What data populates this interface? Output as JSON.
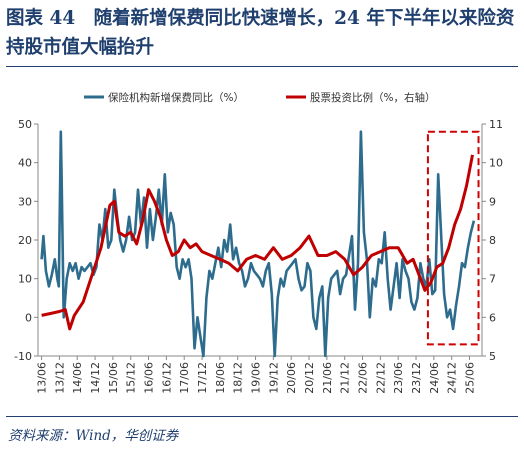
{
  "title": "图表 44　随着新增保费同比快速增长，24 年下半年以来险资持股市值大幅抬升",
  "source": "资料来源：Wind，华创证券",
  "colors": {
    "insurance_premium": "#2e6c8e",
    "equity_ratio": "#c00000",
    "highlight": "#d00000",
    "title": "#1f3f6e"
  },
  "chart_data": {
    "type": "line",
    "title": "",
    "xlabel": "",
    "ylabel": "",
    "grid": false,
    "legend": "top",
    "x_tick_labels": [
      "13/06",
      "13/12",
      "14/06",
      "14/12",
      "15/06",
      "15/12",
      "16/06",
      "16/12",
      "17/06",
      "17/12",
      "18/06",
      "18/12",
      "19/06",
      "19/12",
      "20/06",
      "20/12",
      "21/06",
      "21/12",
      "22/06",
      "22/12",
      "23/06",
      "23/12",
      "24/06",
      "24/12",
      "25/06"
    ],
    "y_left": {
      "min": -10,
      "max": 50,
      "ticks": [
        -10,
        0,
        10,
        20,
        30,
        40,
        50
      ]
    },
    "y_right": {
      "min": 5,
      "max": 11,
      "ticks": [
        5,
        6,
        7,
        8,
        9,
        10,
        11
      ]
    },
    "highlight_box": {
      "x_from": "24/04",
      "x_to": "25/06",
      "y_right_from": 5.3,
      "y_right_to": 10.8
    },
    "series": [
      {
        "name": "保险机构新增保费同比（%）",
        "axis": "left",
        "color": "#2e6c8e",
        "values": [
          [
            "2013-06-01",
            15
          ],
          [
            "2013-06-20",
            21
          ],
          [
            "2013-07-15",
            12
          ],
          [
            "2013-08-15",
            8
          ],
          [
            "2013-09-15",
            11
          ],
          [
            "2013-10-15",
            15
          ],
          [
            "2013-11-10",
            10
          ],
          [
            "2013-11-25",
            8
          ],
          [
            "2013-12-15",
            48
          ],
          [
            "2013-12-25",
            35
          ],
          [
            "2014-01-15",
            0
          ],
          [
            "2014-01-25",
            3
          ],
          [
            "2014-02-15",
            10
          ],
          [
            "2014-03-15",
            14
          ],
          [
            "2014-04-15",
            12
          ],
          [
            "2014-05-15",
            14
          ],
          [
            "2014-06-15",
            10
          ],
          [
            "2014-07-15",
            13
          ],
          [
            "2014-08-15",
            12
          ],
          [
            "2014-09-15",
            13
          ],
          [
            "2014-10-15",
            14
          ],
          [
            "2014-11-15",
            11
          ],
          [
            "2014-12-15",
            13
          ],
          [
            "2015-01-15",
            24
          ],
          [
            "2015-02-15",
            20
          ],
          [
            "2015-03-15",
            28
          ],
          [
            "2015-04-15",
            18
          ],
          [
            "2015-05-15",
            20
          ],
          [
            "2015-06-15",
            33
          ],
          [
            "2015-07-15",
            26
          ],
          [
            "2015-08-15",
            20
          ],
          [
            "2015-09-15",
            17
          ],
          [
            "2015-10-15",
            20
          ],
          [
            "2015-11-15",
            26
          ],
          [
            "2015-12-15",
            20
          ],
          [
            "2016-01-15",
            22
          ],
          [
            "2016-02-15",
            33
          ],
          [
            "2016-03-15",
            24
          ],
          [
            "2016-04-15",
            31
          ],
          [
            "2016-05-15",
            18
          ],
          [
            "2016-06-15",
            28
          ],
          [
            "2016-07-15",
            20
          ],
          [
            "2016-08-15",
            26
          ],
          [
            "2016-09-15",
            33
          ],
          [
            "2016-10-15",
            24
          ],
          [
            "2016-11-15",
            37
          ],
          [
            "2016-12-15",
            22
          ],
          [
            "2017-01-15",
            27
          ],
          [
            "2017-02-15",
            24
          ],
          [
            "2017-03-15",
            13
          ],
          [
            "2017-04-15",
            10
          ],
          [
            "2017-05-15",
            15
          ],
          [
            "2017-06-15",
            13
          ],
          [
            "2017-07-15",
            15
          ],
          [
            "2017-08-15",
            10
          ],
          [
            "2017-09-15",
            -8
          ],
          [
            "2017-10-15",
            0
          ],
          [
            "2017-11-15",
            -5
          ],
          [
            "2017-12-15",
            -10
          ],
          [
            "2018-01-15",
            5
          ],
          [
            "2018-02-15",
            12
          ],
          [
            "2018-03-15",
            10
          ],
          [
            "2018-04-15",
            14
          ],
          [
            "2018-05-15",
            18
          ],
          [
            "2018-06-15",
            13
          ],
          [
            "2018-07-15",
            20
          ],
          [
            "2018-08-15",
            17
          ],
          [
            "2018-09-15",
            24
          ],
          [
            "2018-10-15",
            15
          ],
          [
            "2018-11-15",
            18
          ],
          [
            "2018-12-15",
            14
          ],
          [
            "2019-01-15",
            12
          ],
          [
            "2019-02-15",
            8
          ],
          [
            "2019-03-15",
            10
          ],
          [
            "2019-04-15",
            14
          ],
          [
            "2019-05-15",
            12
          ],
          [
            "2019-06-15",
            11
          ],
          [
            "2019-07-15",
            10
          ],
          [
            "2019-08-15",
            8
          ],
          [
            "2019-09-15",
            12
          ],
          [
            "2019-10-15",
            14
          ],
          [
            "2019-11-15",
            6
          ],
          [
            "2019-12-15",
            -10
          ],
          [
            "2020-01-15",
            5
          ],
          [
            "2020-02-15",
            10
          ],
          [
            "2020-03-15",
            8
          ],
          [
            "2020-04-15",
            12
          ],
          [
            "2020-05-15",
            13
          ],
          [
            "2020-06-15",
            14
          ],
          [
            "2020-07-15",
            15
          ],
          [
            "2020-08-15",
            10
          ],
          [
            "2020-09-15",
            7
          ],
          [
            "2020-10-15",
            8
          ],
          [
            "2020-11-15",
            14
          ],
          [
            "2020-12-15",
            12
          ],
          [
            "2021-01-15",
            0
          ],
          [
            "2021-02-15",
            -3
          ],
          [
            "2021-03-15",
            5
          ],
          [
            "2021-04-15",
            8
          ],
          [
            "2021-05-15",
            -10
          ],
          [
            "2021-06-15",
            5
          ],
          [
            "2021-07-15",
            10
          ],
          [
            "2021-08-15",
            11
          ],
          [
            "2021-09-15",
            12
          ],
          [
            "2021-10-15",
            6
          ],
          [
            "2021-11-15",
            10
          ],
          [
            "2021-12-15",
            11
          ],
          [
            "2022-01-15",
            16
          ],
          [
            "2022-02-15",
            21
          ],
          [
            "2022-03-15",
            2
          ],
          [
            "2022-04-15",
            14
          ],
          [
            "2022-05-15",
            48
          ],
          [
            "2022-06-15",
            22
          ],
          [
            "2022-07-15",
            15
          ],
          [
            "2022-08-15",
            0
          ],
          [
            "2022-09-15",
            10
          ],
          [
            "2022-10-15",
            8
          ],
          [
            "2022-11-15",
            15
          ],
          [
            "2022-12-15",
            14
          ],
          [
            "2023-01-15",
            22
          ],
          [
            "2023-02-15",
            10
          ],
          [
            "2023-03-15",
            2
          ],
          [
            "2023-04-15",
            8
          ],
          [
            "2023-05-15",
            14
          ],
          [
            "2023-06-15",
            5
          ],
          [
            "2023-07-15",
            15
          ],
          [
            "2023-08-15",
            12
          ],
          [
            "2023-09-15",
            10
          ],
          [
            "2023-10-15",
            4
          ],
          [
            "2023-11-15",
            2
          ],
          [
            "2023-12-15",
            5
          ],
          [
            "2024-01-15",
            14
          ],
          [
            "2024-02-15",
            10
          ],
          [
            "2024-03-15",
            8
          ],
          [
            "2024-04-15",
            15
          ],
          [
            "2024-05-15",
            6
          ],
          [
            "2024-06-15",
            7
          ],
          [
            "2024-07-15",
            37
          ],
          [
            "2024-08-15",
            21
          ],
          [
            "2024-09-15",
            6
          ],
          [
            "2024-10-15",
            0
          ],
          [
            "2024-11-15",
            2
          ],
          [
            "2024-12-15",
            -3
          ],
          [
            "2025-01-15",
            3
          ],
          [
            "2025-02-15",
            8
          ],
          [
            "2025-03-15",
            14
          ],
          [
            "2025-04-15",
            13
          ],
          [
            "2025-05-15",
            18
          ],
          [
            "2025-06-15",
            22
          ],
          [
            "2025-07-15",
            25
          ]
        ]
      },
      {
        "name": "股票投资比例（%，右轴）",
        "axis": "right",
        "color": "#c00000",
        "values": [
          [
            "2013-06-01",
            6.05
          ],
          [
            "2013-09-01",
            6.1
          ],
          [
            "2013-12-01",
            6.15
          ],
          [
            "2014-02-01",
            6.2
          ],
          [
            "2014-03-15",
            5.7
          ],
          [
            "2014-05-01",
            6.05
          ],
          [
            "2014-08-01",
            6.4
          ],
          [
            "2014-11-01",
            7.1
          ],
          [
            "2015-02-01",
            7.8
          ],
          [
            "2015-05-01",
            8.9
          ],
          [
            "2015-06-15",
            9.0
          ],
          [
            "2015-08-01",
            8.2
          ],
          [
            "2015-10-01",
            8.1
          ],
          [
            "2015-12-01",
            8.2
          ],
          [
            "2016-02-01",
            7.9
          ],
          [
            "2016-04-01",
            8.5
          ],
          [
            "2016-06-01",
            9.3
          ],
          [
            "2016-08-01",
            9.0
          ],
          [
            "2016-10-01",
            8.6
          ],
          [
            "2016-12-01",
            8.0
          ],
          [
            "2017-02-01",
            7.6
          ],
          [
            "2017-04-01",
            7.7
          ],
          [
            "2017-06-01",
            8.0
          ],
          [
            "2017-08-01",
            7.8
          ],
          [
            "2017-10-01",
            7.9
          ],
          [
            "2017-12-01",
            7.7
          ],
          [
            "2018-03-01",
            7.6
          ],
          [
            "2018-06-01",
            7.5
          ],
          [
            "2018-09-01",
            7.4
          ],
          [
            "2018-12-01",
            7.2
          ],
          [
            "2019-03-01",
            7.5
          ],
          [
            "2019-06-01",
            7.6
          ],
          [
            "2019-09-01",
            7.5
          ],
          [
            "2019-12-01",
            7.8
          ],
          [
            "2020-03-01",
            7.5
          ],
          [
            "2020-06-01",
            7.6
          ],
          [
            "2020-09-01",
            7.8
          ],
          [
            "2020-12-01",
            8.1
          ],
          [
            "2021-03-01",
            7.6
          ],
          [
            "2021-06-01",
            7.6
          ],
          [
            "2021-09-01",
            7.7
          ],
          [
            "2021-12-01",
            7.5
          ],
          [
            "2022-03-01",
            7.1
          ],
          [
            "2022-06-01",
            7.3
          ],
          [
            "2022-09-01",
            7.6
          ],
          [
            "2022-12-01",
            7.7
          ],
          [
            "2023-03-01",
            7.8
          ],
          [
            "2023-06-01",
            7.8
          ],
          [
            "2023-09-01",
            7.4
          ],
          [
            "2023-11-01",
            7.5
          ],
          [
            "2024-01-01",
            7.1
          ],
          [
            "2024-03-01",
            6.7
          ],
          [
            "2024-05-01",
            6.9
          ],
          [
            "2024-07-01",
            7.3
          ],
          [
            "2024-09-01",
            7.4
          ],
          [
            "2024-11-01",
            7.8
          ],
          [
            "2025-01-01",
            8.4
          ],
          [
            "2025-03-01",
            8.8
          ],
          [
            "2025-05-01",
            9.4
          ],
          [
            "2025-07-01",
            10.2
          ]
        ]
      }
    ]
  }
}
